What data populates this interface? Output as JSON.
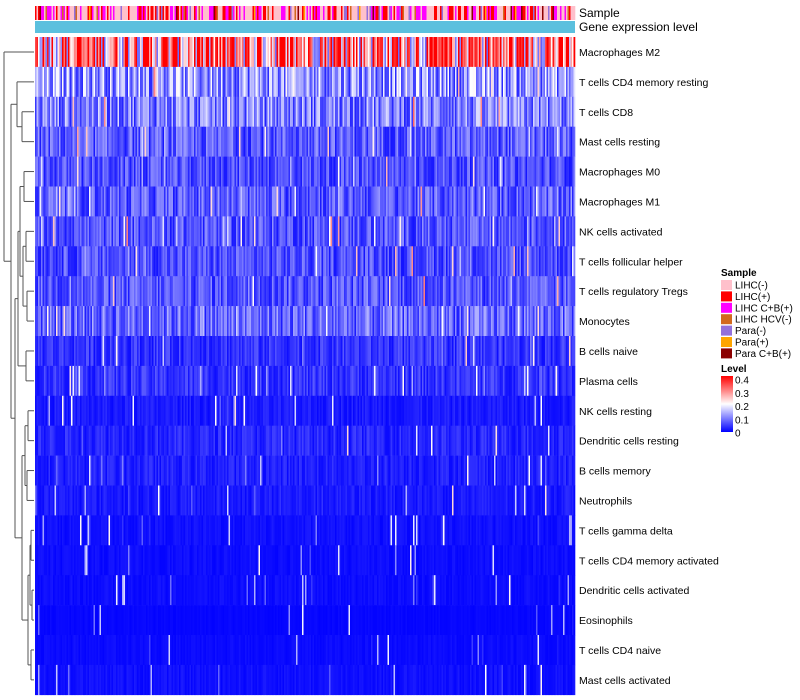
{
  "chart_data": {
    "type": "heatmap",
    "title": "",
    "annotation_tracks": [
      "Sample",
      "Gene expression level"
    ],
    "rows": [
      {
        "name": "Macrophages M2",
        "mean": 0.3
      },
      {
        "name": "T cells CD4 memory resting",
        "mean": 0.12
      },
      {
        "name": "T cells CD8",
        "mean": 0.1
      },
      {
        "name": "Mast cells resting",
        "mean": 0.07
      },
      {
        "name": "Macrophages M0",
        "mean": 0.06
      },
      {
        "name": "Macrophages M1",
        "mean": 0.07
      },
      {
        "name": "NK cells activated",
        "mean": 0.065
      },
      {
        "name": "T cells follicular helper",
        "mean": 0.06
      },
      {
        "name": "T cells regulatory  Tregs",
        "mean": 0.065
      },
      {
        "name": "Monocytes",
        "mean": 0.08
      },
      {
        "name": "B cells naive",
        "mean": 0.04
      },
      {
        "name": "Plasma cells",
        "mean": 0.04
      },
      {
        "name": "NK cells resting",
        "mean": 0.02
      },
      {
        "name": "Dendritic cells resting",
        "mean": 0.03
      },
      {
        "name": "B cells memory",
        "mean": 0.025
      },
      {
        "name": "Neutrophils",
        "mean": 0.02
      },
      {
        "name": "T cells gamma delta",
        "mean": 0.012
      },
      {
        "name": "T cells CD4 memory activated",
        "mean": 0.01
      },
      {
        "name": "Dendritic cells activated",
        "mean": 0.01
      },
      {
        "name": "Eosinophils",
        "mean": 0.005
      },
      {
        "name": "T cells CD4 naive",
        "mean": 0.008
      },
      {
        "name": "Mast cells activated",
        "mean": 0.012
      }
    ],
    "sample_legend": {
      "title": "Sample",
      "items": [
        {
          "label": "LIHC(-)",
          "color": "#ffc0cb"
        },
        {
          "label": "LIHC(+)",
          "color": "#ff0000"
        },
        {
          "label": "LIHC C+B(+)",
          "color": "#ff00ff"
        },
        {
          "label": "LIHC HCV(-)",
          "color": "#d2691e"
        },
        {
          "label": "Para(-)",
          "color": "#9370db"
        },
        {
          "label": "Para(+)",
          "color": "#ffa500"
        },
        {
          "label": "Para C+B(+)",
          "color": "#8b0000"
        }
      ]
    },
    "level_legend": {
      "title": "Level",
      "ticks": [
        "0.4",
        "0.3",
        "0.2",
        "0.1",
        "0"
      ],
      "range": [
        0,
        0.4
      ],
      "colors": [
        "#0000ff",
        "#ffffff",
        "#ff0000"
      ]
    },
    "expression_bar_color": "#5bc0de"
  }
}
